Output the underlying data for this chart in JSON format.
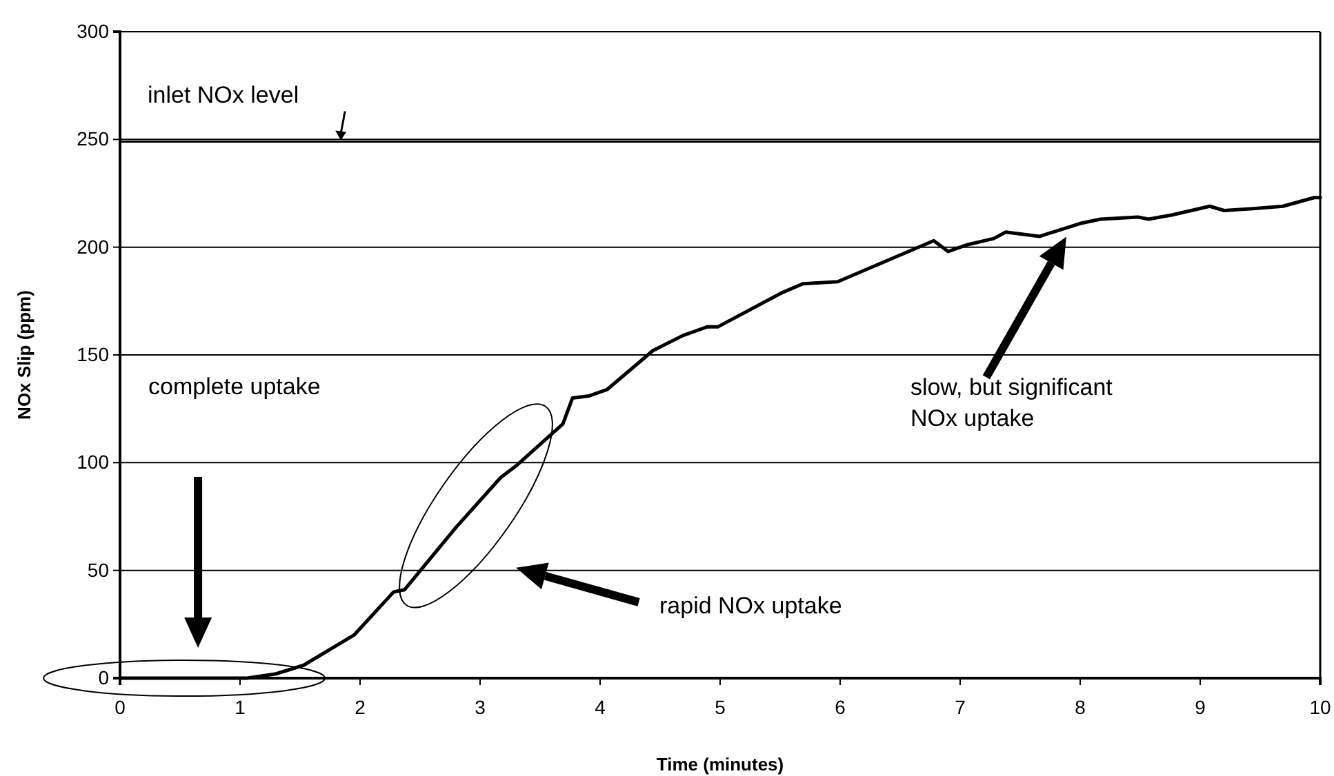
{
  "chart_data": {
    "type": "line",
    "xlabel": "Time (minutes)",
    "ylabel": "NOx Slip (ppm)",
    "x": [
      0,
      0.5,
      1.06,
      1.3,
      1.53,
      1.95,
      2.28,
      2.37,
      2.8,
      3.17,
      3.31,
      3.69,
      3.77,
      3.91,
      4.06,
      4.44,
      4.69,
      4.89,
      4.98,
      5.52,
      5.69,
      5.98,
      6.4,
      6.78,
      6.9,
      7.05,
      7.28,
      7.38,
      7.66,
      8.0,
      8.17,
      8.48,
      8.57,
      8.77,
      9.08,
      9.2,
      9.46,
      9.69,
      9.95,
      10
    ],
    "series": [
      {
        "color": "#000000",
        "values": [
          0,
          0,
          0,
          2,
          6,
          20,
          40,
          41,
          70,
          93,
          99,
          118,
          130,
          131,
          134,
          152,
          159,
          163,
          163,
          179,
          183,
          184,
          194,
          203,
          198,
          201,
          204,
          207,
          205,
          211,
          213,
          214,
          213,
          215,
          219,
          217,
          218,
          219,
          223,
          223
        ]
      }
    ],
    "xlim": [
      0,
      10
    ],
    "ylim": [
      0,
      300
    ],
    "xticks": [
      0,
      1,
      2,
      3,
      4,
      5,
      6,
      7,
      8,
      9,
      10
    ],
    "yticks": [
      0,
      50,
      100,
      150,
      200,
      250,
      300
    ],
    "grid": "y",
    "marker": "none",
    "line_style": "solid",
    "ref_lines": [
      {
        "axis": "y",
        "value": 249,
        "label": "inlet NOx level",
        "color": "#000000"
      }
    ],
    "annotations": [
      "complete uptake",
      "rapid NOx uptake",
      "slow, but significant\nNOx uptake"
    ]
  }
}
